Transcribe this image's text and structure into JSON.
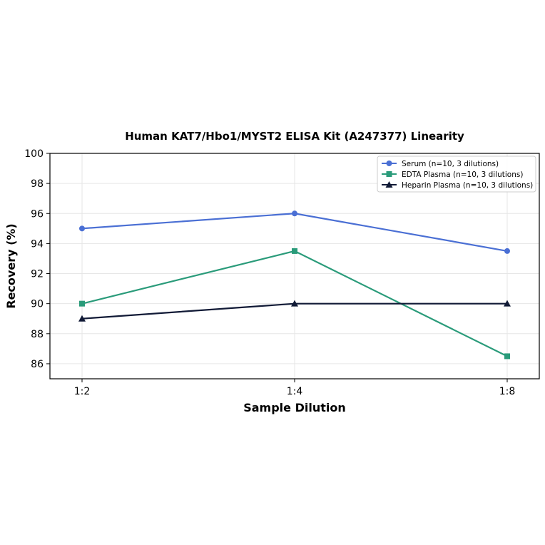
{
  "chart_data": {
    "type": "line",
    "title": "Human KAT7/Hbo1/MYST2 ELISA Kit (A247377) Linearity",
    "xlabel": "Sample Dilution",
    "ylabel": "Recovery (%)",
    "categories": [
      "1:2",
      "1:4",
      "1:8"
    ],
    "ylim": [
      85,
      100
    ],
    "yticks": [
      "86",
      "88",
      "90",
      "92",
      "94",
      "96",
      "98",
      "100"
    ],
    "grid": true,
    "legend_position": "top-right",
    "series": [
      {
        "name": "Serum (n=10, 3 dilutions)",
        "values": [
          95,
          96,
          93.5
        ],
        "color": "#4a6fd4",
        "marker": "circle"
      },
      {
        "name": "EDTA Plasma (n=10, 3 dilutions)",
        "values": [
          90,
          93.5,
          86.5
        ],
        "color": "#2a9b7a",
        "marker": "square"
      },
      {
        "name": "Heparin Plasma (n=10, 3 dilutions)",
        "values": [
          89,
          90,
          90
        ],
        "color": "#111a36",
        "marker": "triangle"
      }
    ]
  }
}
